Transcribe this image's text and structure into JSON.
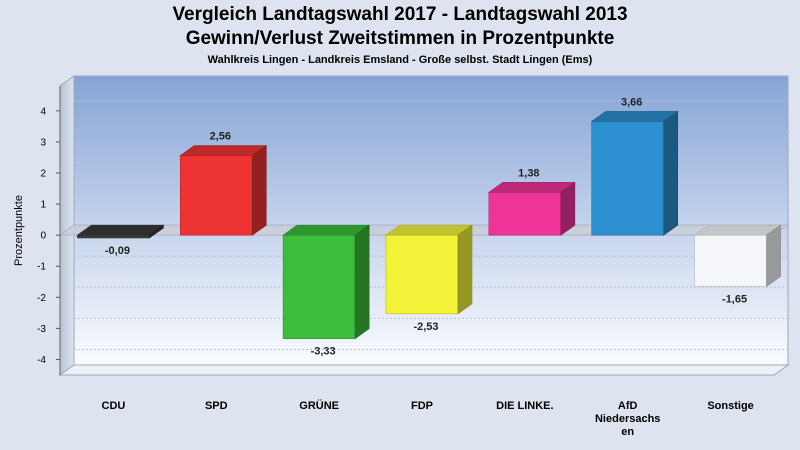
{
  "chart_data": {
    "type": "bar",
    "title": "Vergleich Landtagswahl 2017 - Landtagswahl 2013",
    "subtitle_main": "Gewinn/Verlust Zweitstimmen in Prozentpunkte",
    "subtitle": "Wahlkreis Lingen - Landkreis Emsland - Große selbst. Stadt Lingen (Ems)",
    "xlabel": "",
    "ylabel": "Prozentpunkte",
    "ylim": [
      -4.5,
      4.8
    ],
    "yticks": [
      4,
      3,
      2,
      1,
      0,
      -1,
      -2,
      -3,
      -4
    ],
    "grid": true,
    "categories": [
      [
        "CDU"
      ],
      [
        "SPD"
      ],
      [
        "GRÜNE"
      ],
      [
        "FDP"
      ],
      [
        "DIE LINKE."
      ],
      [
        "AfD",
        "Niedersachs",
        "en"
      ],
      [
        "Sonstige"
      ]
    ],
    "values": [
      -0.09,
      2.56,
      -3.33,
      -2.53,
      1.38,
      3.66,
      -1.65
    ],
    "value_labels": [
      "-0,09",
      "2,56",
      "-3,33",
      "-2,53",
      "1,38",
      "3,66",
      "-1,65"
    ],
    "colors": [
      "#3a3a3a",
      "#ee3333",
      "#3cbd3c",
      "#f3f33a",
      "#ee3399",
      "#2b8fd0",
      "#f4f6fa"
    ]
  }
}
